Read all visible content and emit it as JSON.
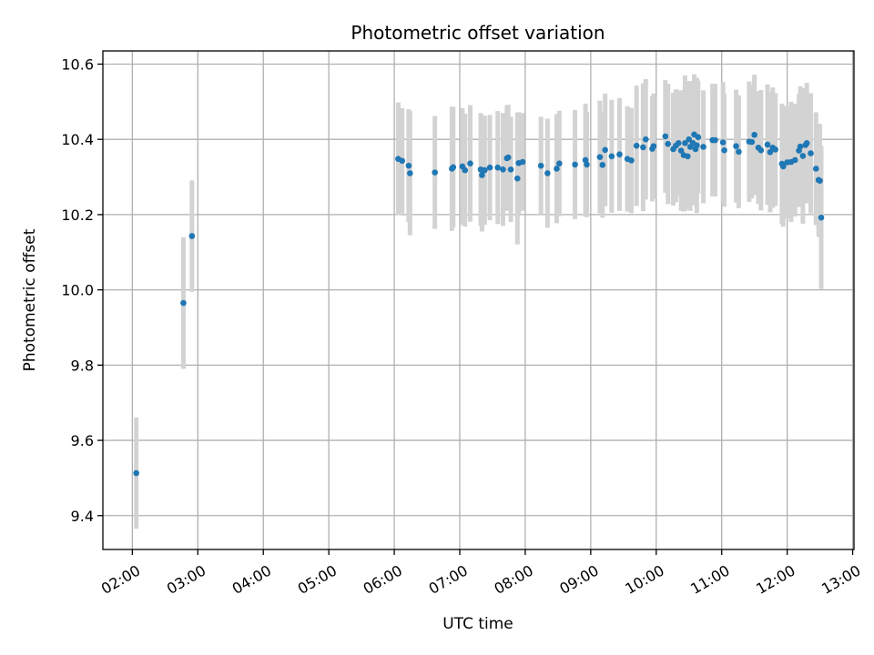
{
  "chart_data": {
    "type": "scatter",
    "title": "Photometric offset variation",
    "xlabel": "UTC time",
    "ylabel": "Photometric offset",
    "x_unit": "UTC hour of day",
    "xlim": [
      1.55,
      13.02
    ],
    "ylim": [
      9.31,
      10.635
    ],
    "grid": true,
    "xticks": [
      {
        "value": 2,
        "label": "02:00"
      },
      {
        "value": 3,
        "label": "03:00"
      },
      {
        "value": 4,
        "label": "04:00"
      },
      {
        "value": 5,
        "label": "05:00"
      },
      {
        "value": 6,
        "label": "06:00"
      },
      {
        "value": 7,
        "label": "07:00"
      },
      {
        "value": 8,
        "label": "08:00"
      },
      {
        "value": 9,
        "label": "09:00"
      },
      {
        "value": 10,
        "label": "10:00"
      },
      {
        "value": 11,
        "label": "11:00"
      },
      {
        "value": 12,
        "label": "12:00"
      },
      {
        "value": 13,
        "label": "13:00"
      }
    ],
    "yticks": [
      {
        "value": 9.4,
        "label": "9.4"
      },
      {
        "value": 9.6,
        "label": "9.6"
      },
      {
        "value": 9.8,
        "label": "9.8"
      },
      {
        "value": 10.0,
        "label": "10.0"
      },
      {
        "value": 10.2,
        "label": "10.2"
      },
      {
        "value": 10.4,
        "label": "10.4"
      },
      {
        "value": 10.6,
        "label": "10.6"
      }
    ],
    "colors": {
      "point": "#1f77b4",
      "errorbar": "#d3d3d3"
    },
    "series": [
      {
        "x": [
          2.06,
          2.78,
          2.91,
          6.06,
          6.12,
          6.22,
          6.24,
          6.62,
          6.88,
          6.9,
          7.04,
          7.08,
          7.16,
          7.32,
          7.34,
          7.38,
          7.46,
          7.58,
          7.66,
          7.72,
          7.74,
          7.78,
          7.88,
          7.9,
          7.96,
          8.24,
          8.34,
          8.48,
          8.52,
          8.76,
          8.92,
          8.94,
          9.14,
          9.18,
          9.22,
          9.32,
          9.44,
          9.56,
          9.62,
          9.7,
          9.8,
          9.84,
          9.94,
          9.96,
          10.14,
          10.18,
          10.26,
          10.3,
          10.34,
          10.38,
          10.42,
          10.44,
          10.48,
          10.5,
          10.52,
          10.56,
          10.58,
          10.6,
          10.62,
          10.64,
          10.72,
          10.86,
          10.9,
          11.02,
          11.04,
          11.22,
          11.26,
          11.42,
          11.46,
          11.5,
          11.56,
          11.6,
          11.7,
          11.74,
          11.78,
          11.82,
          11.92,
          11.94,
          12.0,
          12.06,
          12.12,
          12.18,
          12.2,
          12.24,
          12.28,
          12.3,
          12.36,
          12.44,
          12.48,
          12.5,
          12.52
        ],
        "y": [
          9.513,
          9.965,
          10.143,
          10.348,
          10.343,
          10.33,
          10.31,
          10.312,
          10.322,
          10.326,
          10.328,
          10.318,
          10.336,
          10.32,
          10.305,
          10.318,
          10.325,
          10.325,
          10.32,
          10.35,
          10.352,
          10.32,
          10.296,
          10.337,
          10.34,
          10.33,
          10.31,
          10.322,
          10.336,
          10.333,
          10.345,
          10.333,
          10.353,
          10.332,
          10.372,
          10.355,
          10.36,
          10.348,
          10.344,
          10.383,
          10.379,
          10.4,
          10.375,
          10.382,
          10.408,
          10.388,
          10.374,
          10.383,
          10.39,
          10.37,
          10.358,
          10.39,
          10.355,
          10.4,
          10.38,
          10.39,
          10.413,
          10.374,
          10.384,
          10.406,
          10.38,
          10.398,
          10.398,
          10.392,
          10.371,
          10.382,
          10.367,
          10.394,
          10.393,
          10.412,
          10.378,
          10.371,
          10.386,
          10.366,
          10.378,
          10.373,
          10.335,
          10.328,
          10.339,
          10.34,
          10.345,
          10.37,
          10.381,
          10.356,
          10.385,
          10.39,
          10.363,
          10.322,
          10.292,
          10.29,
          10.192
        ],
        "yerr": [
          0.148,
          0.175,
          0.148,
          0.15,
          0.14,
          0.15,
          0.165,
          0.15,
          0.165,
          0.16,
          0.155,
          0.15,
          0.155,
          0.15,
          0.15,
          0.145,
          0.14,
          0.15,
          0.15,
          0.14,
          0.14,
          0.14,
          0.175,
          0.135,
          0.13,
          0.13,
          0.145,
          0.145,
          0.14,
          0.145,
          0.15,
          0.14,
          0.15,
          0.14,
          0.15,
          0.15,
          0.15,
          0.14,
          0.14,
          0.16,
          0.17,
          0.16,
          0.14,
          0.14,
          0.15,
          0.16,
          0.15,
          0.15,
          0.14,
          0.16,
          0.15,
          0.18,
          0.14,
          0.155,
          0.17,
          0.165,
          0.16,
          0.145,
          0.18,
          0.15,
          0.15,
          0.15,
          0.15,
          0.16,
          0.15,
          0.15,
          0.15,
          0.16,
          0.15,
          0.16,
          0.15,
          0.16,
          0.16,
          0.16,
          0.16,
          0.15,
          0.16,
          0.16,
          0.15,
          0.16,
          0.15,
          0.15,
          0.16,
          0.18,
          0.15,
          0.16,
          0.16,
          0.15,
          0.15,
          0.15,
          0.19
        ]
      }
    ]
  }
}
